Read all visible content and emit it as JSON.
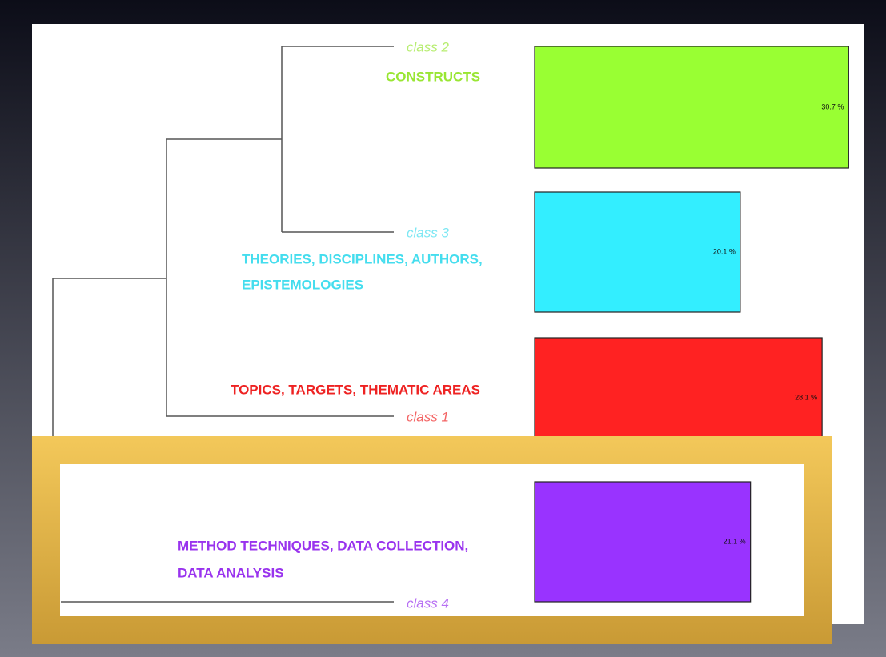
{
  "chart_data": {
    "type": "bar",
    "categories": [
      "class 2",
      "class 3",
      "class 1",
      "class 4"
    ],
    "descriptions": [
      [
        "CONSTRUCTS"
      ],
      [
        "THEORIES, DISCIPLINES, AUTHORS,",
        "EPISTEMOLOGIES"
      ],
      [
        "TOPICS, TARGETS, THEMATIC AREAS"
      ],
      [
        "METHOD TECHNIQUES, DATA COLLECTION,",
        "DATA ANALYSIS"
      ]
    ],
    "values": [
      30.7,
      20.1,
      28.1,
      21.1
    ],
    "value_labels": [
      "30.7 %",
      "20.1 %",
      "28.1 %",
      "21.1 %"
    ],
    "colors": [
      "#99ff33",
      "#33eeff",
      "#ff2222",
      "#9933ff"
    ]
  }
}
